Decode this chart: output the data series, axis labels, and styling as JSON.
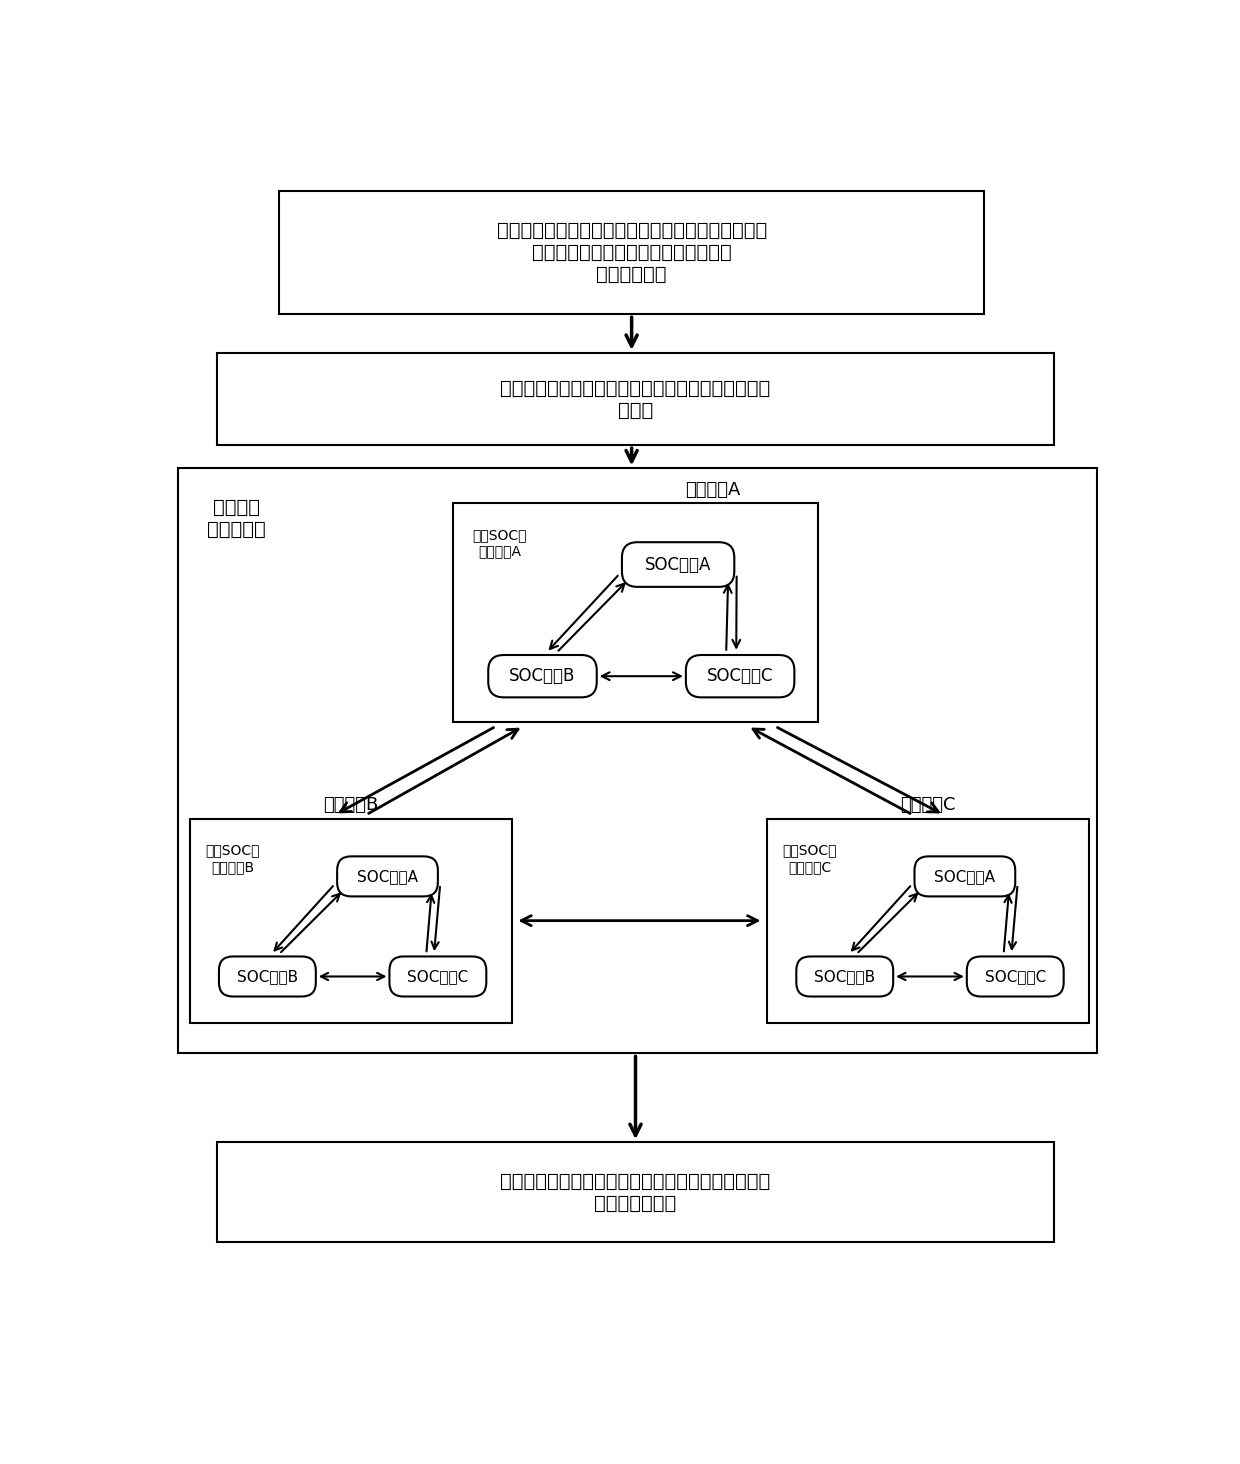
{
  "bg_color": "#ffffff",
  "line_color": "#000000",
  "box1_text": "获取风电功率的日前预测曲线、当前实际风电功率值\n以及电池储能电站中当前各储能机组的\n主要运行信息",
  "box2_text": "基于风电功率的日前预测值，计算风电功率预测误差\n特征值",
  "box3_text": "实时修正风储联合出力控制目标，并确定电池储能电\n站总功率需求值",
  "label_wind_fsm": "风电功率\n有限状态机",
  "label_wind_A": "风电状态A",
  "label_wind_B": "风电状态B",
  "label_wind_C": "风电状态C",
  "label_soc_fsm_A": "储能SOC有\n限状态机A",
  "label_soc_fsm_B": "储能SOC有\n限状态机B",
  "label_soc_fsm_C": "储能SOC有\n限状态机C",
  "soc_A": "SOC状态A",
  "soc_B": "SOC状态B",
  "soc_C": "SOC状态C"
}
